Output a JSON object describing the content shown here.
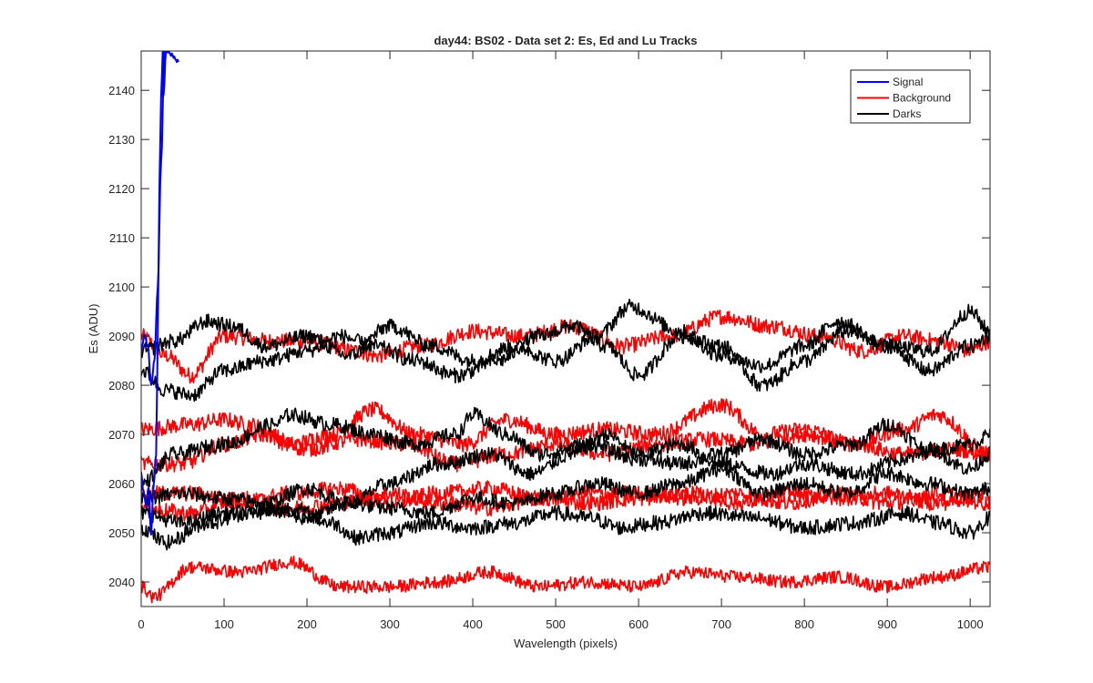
{
  "chart_data": {
    "type": "line",
    "title": "day44: BS02 - Data set 2: Es, Ed and Lu Tracks",
    "xlabel": "Wavelength (pixels)",
    "ylabel": "Es (ADU)",
    "xlim": [
      0,
      1024
    ],
    "ylim": [
      2035,
      2148
    ],
    "xticks": [
      0,
      100,
      200,
      300,
      400,
      500,
      600,
      700,
      800,
      900,
      1000
    ],
    "yticks": [
      2040,
      2050,
      2060,
      2070,
      2080,
      2090,
      2100,
      2110,
      2120,
      2130,
      2140
    ],
    "grid": false,
    "legend": {
      "placement": "top-right",
      "entries": [
        {
          "label": "Signal",
          "color": "#0000ff"
        },
        {
          "label": "Background",
          "color": "#ff0000"
        },
        {
          "label": "Darks",
          "color": "#000000"
        }
      ]
    },
    "series": [
      {
        "name": "Signal",
        "color": "#0000ff",
        "x": [
          0,
          3,
          6,
          9,
          12,
          15,
          18,
          20,
          22,
          24,
          26,
          27,
          30,
          45
        ],
        "y": [
          2062,
          2058,
          2055,
          2059,
          2050,
          2060,
          2066,
          2090,
          2120,
          2138,
          2148,
          2139,
          2148,
          2146
        ],
        "noise": 0.4
      },
      {
        "name": "Signal",
        "color": "#0000ff",
        "x": [
          0,
          4,
          8,
          12,
          16,
          20,
          24,
          28
        ],
        "y": [
          2087,
          2090,
          2088,
          2080,
          2085,
          2100,
          2125,
          2148
        ],
        "noise": 0.4
      },
      {
        "name": "Background",
        "color": "#ff0000",
        "x": [
          0,
          30,
          60,
          100,
          160,
          200,
          260,
          280,
          340,
          400,
          460,
          520,
          580,
          640,
          700,
          760,
          820,
          870,
          920,
          960,
          1000,
          1024
        ],
        "y": [
          2090,
          2086,
          2082,
          2090,
          2089,
          2089,
          2087,
          2086,
          2088,
          2091,
          2090,
          2092,
          2088,
          2090,
          2094,
          2092,
          2090,
          2087,
          2090,
          2089,
          2087,
          2089
        ],
        "noise": 1.6
      },
      {
        "name": "Background",
        "color": "#ff0000",
        "x": [
          0,
          60,
          100,
          130,
          180,
          230,
          280,
          330,
          390,
          440,
          500,
          560,
          620,
          700,
          750,
          800,
          860,
          920,
          960,
          1024
        ],
        "y": [
          2071,
          2072,
          2073,
          2072,
          2068,
          2070,
          2075,
          2070,
          2068,
          2073,
          2070,
          2071,
          2070,
          2076,
          2070,
          2071,
          2068,
          2071,
          2074,
          2066
        ],
        "noise": 1.6
      },
      {
        "name": "Background",
        "color": "#ff0000",
        "x": [
          0,
          50,
          100,
          150,
          200,
          260,
          320,
          380,
          440,
          500,
          560,
          620,
          680,
          740,
          800,
          860,
          920,
          980,
          1024
        ],
        "y": [
          2064,
          2064,
          2068,
          2070,
          2067,
          2069,
          2068,
          2064,
          2066,
          2068,
          2066,
          2068,
          2069,
          2068,
          2070,
          2068,
          2066,
          2067,
          2066
        ],
        "noise": 1.6
      },
      {
        "name": "Background",
        "color": "#ff0000",
        "x": [
          0,
          60,
          120,
          180,
          240,
          300,
          360,
          420,
          480,
          540,
          600,
          660,
          720,
          780,
          840,
          900,
          960,
          1024
        ],
        "y": [
          2058,
          2058,
          2056,
          2058,
          2059,
          2056,
          2058,
          2059,
          2057,
          2058,
          2058,
          2057,
          2058,
          2056,
          2058,
          2056,
          2058,
          2056
        ],
        "noise": 1.6
      },
      {
        "name": "Background",
        "color": "#ff0000",
        "x": [
          0,
          60,
          120,
          180,
          240,
          300,
          360,
          420,
          480,
          540,
          600,
          660,
          720,
          780,
          840,
          900,
          960,
          1024
        ],
        "y": [
          2055,
          2054,
          2057,
          2055,
          2056,
          2058,
          2056,
          2055,
          2057,
          2056,
          2057,
          2058,
          2056,
          2058,
          2057,
          2058,
          2056,
          2058
        ],
        "noise": 1.6
      },
      {
        "name": "Background",
        "color": "#ff0000",
        "x": [
          0,
          15,
          60,
          120,
          180,
          240,
          300,
          360,
          420,
          480,
          540,
          600,
          660,
          720,
          780,
          840,
          900,
          960,
          1024
        ],
        "y": [
          2039,
          2037,
          2043,
          2042,
          2044,
          2039,
          2039,
          2040,
          2042,
          2039,
          2040,
          2039,
          2042,
          2041,
          2040,
          2041,
          2039,
          2041,
          2043
        ],
        "noise": 1.3
      },
      {
        "name": "Darks",
        "color": "#000000",
        "x": [
          0,
          40,
          80,
          110,
          150,
          200,
          250,
          300,
          350,
          400,
          450,
          500,
          550,
          590,
          650,
          700,
          750,
          800,
          840,
          900,
          950,
          1000,
          1024
        ],
        "y": [
          2087,
          2089,
          2093,
          2092,
          2088,
          2090,
          2086,
          2092,
          2088,
          2085,
          2088,
          2085,
          2090,
          2096,
          2091,
          2086,
          2084,
          2088,
          2093,
          2088,
          2087,
          2095,
          2091
        ],
        "noise": 1.5
      },
      {
        "name": "Darks",
        "color": "#000000",
        "x": [
          0,
          30,
          60,
          100,
          150,
          200,
          240,
          280,
          330,
          380,
          430,
          480,
          520,
          560,
          600,
          650,
          700,
          750,
          800,
          850,
          900,
          950,
          1000,
          1024
        ],
        "y": [
          2083,
          2079,
          2078,
          2083,
          2085,
          2087,
          2090,
          2088,
          2085,
          2082,
          2085,
          2090,
          2092,
          2088,
          2082,
          2090,
          2088,
          2080,
          2085,
          2091,
          2088,
          2083,
          2088,
          2090
        ],
        "noise": 1.5
      },
      {
        "name": "Darks",
        "color": "#000000",
        "x": [
          0,
          40,
          100,
          160,
          180,
          230,
          280,
          330,
          380,
          400,
          440,
          480,
          540,
          600,
          650,
          700,
          750,
          800,
          860,
          900,
          950,
          1000,
          1024
        ],
        "y": [
          2060,
          2066,
          2068,
          2072,
          2074,
          2072,
          2070,
          2068,
          2070,
          2074,
          2070,
          2066,
          2068,
          2065,
          2064,
          2066,
          2069,
          2066,
          2068,
          2072,
          2067,
          2063,
          2066
        ],
        "noise": 1.5
      },
      {
        "name": "Darks",
        "color": "#000000",
        "x": [
          0,
          50,
          100,
          150,
          200,
          250,
          300,
          360,
          420,
          470,
          520,
          560,
          600,
          650,
          700,
          760,
          800,
          860,
          920,
          960,
          1000,
          1024
        ],
        "y": [
          2057,
          2058,
          2057,
          2056,
          2059,
          2056,
          2060,
          2064,
          2066,
          2062,
          2066,
          2070,
          2066,
          2068,
          2064,
          2062,
          2064,
          2062,
          2065,
          2067,
          2068,
          2070
        ],
        "noise": 1.5
      },
      {
        "name": "Darks",
        "color": "#000000",
        "x": [
          0,
          50,
          100,
          150,
          200,
          250,
          300,
          350,
          400,
          450,
          500,
          550,
          600,
          650,
          700,
          750,
          800,
          850,
          900,
          950,
          1000,
          1024
        ],
        "y": [
          2054,
          2052,
          2054,
          2055,
          2053,
          2056,
          2055,
          2054,
          2057,
          2056,
          2058,
          2060,
          2058,
          2060,
          2063,
          2058,
          2060,
          2058,
          2062,
          2060,
          2058,
          2059
        ],
        "noise": 1.5
      },
      {
        "name": "Darks",
        "color": "#000000",
        "x": [
          0,
          30,
          80,
          130,
          180,
          230,
          260,
          300,
          350,
          400,
          450,
          500,
          540,
          580,
          620,
          680,
          740,
          800,
          860,
          920,
          960,
          1000,
          1024
        ],
        "y": [
          2051,
          2048,
          2052,
          2054,
          2055,
          2052,
          2049,
          2050,
          2052,
          2051,
          2052,
          2054,
          2053,
          2051,
          2052,
          2054,
          2053,
          2051,
          2052,
          2054,
          2052,
          2050,
          2053
        ],
        "noise": 1.5
      }
    ]
  }
}
